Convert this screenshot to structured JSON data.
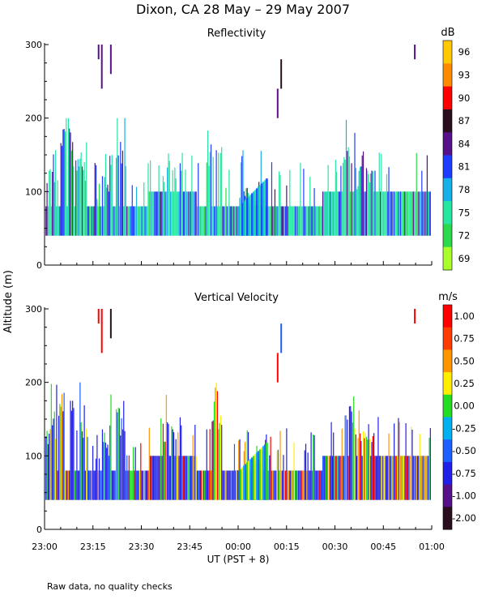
{
  "chart_data": {
    "type": "heatmap",
    "title": "Dixon, CA 28 May – 29 May 2007",
    "ylabel": "Altitude  (m)",
    "xlabel": "UT   (PST + 8)",
    "footnote": "Raw data, no quality checks",
    "x_range_minutes": [
      0,
      120
    ],
    "x_ticks": [
      "23:00",
      "23:15",
      "23:30",
      "23:45",
      "00:00",
      "00:15",
      "00:30",
      "00:45",
      "01:00"
    ],
    "y_range": [
      0,
      300
    ],
    "y_ticks": [
      "0",
      "100",
      "200",
      "300"
    ],
    "panels": [
      {
        "title": "Reflectivity",
        "units": "dB",
        "colorbar_labels": [
          "96",
          "93",
          "90",
          "87",
          "84",
          "81",
          "78",
          "75",
          "72",
          "69"
        ],
        "colorbar_colors": [
          "#FFC800",
          "#FF8C00",
          "#FF0000",
          "#2A0E1E",
          "#55108A",
          "#1E3CFF",
          "#18B0E8",
          "#26E6A0",
          "#2CD84C",
          "#A8FF2A"
        ],
        "base_color": "#26E6A0",
        "spike_colors": [
          "#1E3CFF",
          "#1E3CFF",
          "#18B0E8",
          "#55108A",
          "#2CD84C"
        ],
        "echo_base_altitude": 40,
        "echo_top_typical": 80,
        "bursts": [
          {
            "t": 1,
            "top": 160
          },
          {
            "t": 4,
            "top": 180
          },
          {
            "t": 6.5,
            "top": 200
          },
          {
            "t": 11,
            "top": 160
          },
          {
            "t": 18,
            "top": 140
          },
          {
            "t": 22.5,
            "top": 180
          },
          {
            "t": 39,
            "top": 160
          },
          {
            "t": 52.5,
            "top": 180
          },
          {
            "t": 62,
            "top": 120
          },
          {
            "t": 66,
            "top": 120
          },
          {
            "t": 94,
            "top": 180
          },
          {
            "t": 99,
            "top": 160
          }
        ],
        "upper_echoes": [
          {
            "t0": 16.5,
            "t1": 17.0,
            "bottom": 280,
            "top": 300,
            "color": "#55108A"
          },
          {
            "t0": 17.5,
            "t1": 18.0,
            "bottom": 240,
            "top": 300,
            "color": "#55108A"
          },
          {
            "t0": 20.3,
            "t1": 20.8,
            "bottom": 260,
            "top": 300,
            "color": "#55108A"
          },
          {
            "t0": 72.0,
            "t1": 72.5,
            "bottom": 200,
            "top": 240,
            "color": "#55108A"
          },
          {
            "t0": 73.1,
            "t1": 73.6,
            "bottom": 240,
            "top": 280,
            "color": "#2A0E1E"
          },
          {
            "t0": 114.5,
            "t1": 115.0,
            "bottom": 280,
            "top": 300,
            "color": "#55108A"
          }
        ]
      },
      {
        "title": "Vertical Velocity",
        "units": "m/s",
        "colorbar_labels": [
          "1.00",
          "0.75",
          "0.50",
          "0.25",
          "0.00",
          "-0.25",
          "-0.50",
          "-0.75",
          "-1.00",
          "-2.00"
        ],
        "colorbar_colors": [
          "#FF0000",
          "#FF3C00",
          "#FF9600",
          "#FFEE00",
          "#22DD22",
          "#00B0F0",
          "#1E60FF",
          "#2020E8",
          "#55108A",
          "#2A0E1E"
        ],
        "base_color": "#2020E8",
        "spike_colors": [
          "#FF0000",
          "#FFEE00",
          "#1E60FF",
          "#22DD22",
          "#FF9600"
        ],
        "echo_base_altitude": 40,
        "echo_top_typical": 80,
        "bursts": [
          {
            "t": 1,
            "top": 160
          },
          {
            "t": 4,
            "top": 180
          },
          {
            "t": 6.5,
            "top": 200
          },
          {
            "t": 11,
            "top": 160
          },
          {
            "t": 18,
            "top": 140
          },
          {
            "t": 22.5,
            "top": 180
          },
          {
            "t": 39,
            "top": 160
          },
          {
            "t": 52.5,
            "top": 180
          },
          {
            "t": 62,
            "top": 120
          },
          {
            "t": 66,
            "top": 120
          },
          {
            "t": 94,
            "top": 180
          },
          {
            "t": 99,
            "top": 160
          }
        ],
        "upper_echoes": [
          {
            "t0": 16.5,
            "t1": 17.0,
            "bottom": 280,
            "top": 300,
            "color": "#FF0000"
          },
          {
            "t0": 17.5,
            "t1": 18.0,
            "bottom": 240,
            "top": 300,
            "color": "#FF0000"
          },
          {
            "t0": 20.3,
            "t1": 20.8,
            "bottom": 260,
            "top": 300,
            "color": "#2A0E1E"
          },
          {
            "t0": 72.0,
            "t1": 72.5,
            "bottom": 200,
            "top": 240,
            "color": "#FF0000"
          },
          {
            "t0": 73.1,
            "t1": 73.6,
            "bottom": 240,
            "top": 280,
            "color": "#1E60FF"
          },
          {
            "t0": 114.5,
            "t1": 115.0,
            "bottom": 280,
            "top": 300,
            "color": "#FF0000"
          }
        ]
      }
    ]
  }
}
